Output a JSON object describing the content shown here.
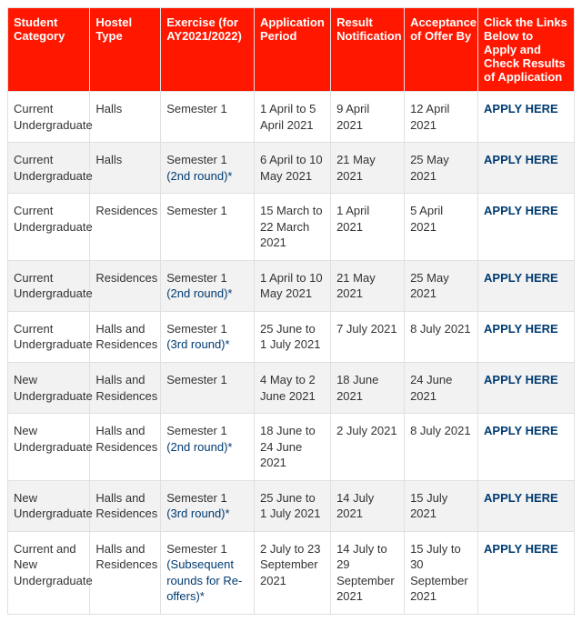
{
  "table": {
    "header_bg": "#ff1700",
    "header_color": "#ffffff",
    "row_alt_bg": "#f2f2f2",
    "border_color": "#e0e0e0",
    "link_color": "#003b71",
    "columns": [
      "Student Category",
      "Hostel Type",
      "Exercise (for AY2021/2022)",
      "Application Period",
      "Result Notification",
      "Acceptance of Offer By",
      "Click the Links Below to Apply and Check Results of Application"
    ],
    "rows": [
      {
        "category": "Current Undergraduate",
        "hostel": "Halls",
        "exercise_main": "Semester 1",
        "exercise_note": "",
        "app_period": "1 April to 5 April 2021",
        "result": "9 April 2021",
        "acceptance": "12 April 2021",
        "link_text": "APPLY HERE",
        "alt": false
      },
      {
        "category": "Current Undergraduate",
        "hostel": "Halls",
        "exercise_main": "Semester 1 ",
        "exercise_note": "(2nd round)*",
        "app_period": "6 April to 10 May 2021",
        "result": "21 May 2021",
        "acceptance": "25 May 2021",
        "link_text": " APPLY HERE",
        "alt": true
      },
      {
        "category": "Current Undergraduate",
        "hostel": "Residences",
        "exercise_main": "Semester 1",
        "exercise_note": "",
        "app_period": "15 March to 22 March 2021",
        "result": "1 April 2021",
        "acceptance": "5 April 2021",
        "link_text": "APPLY HERE",
        "alt": false
      },
      {
        "category": "Current Undergraduate",
        "hostel": "Residences",
        "exercise_main": "Semester 1 ",
        "exercise_note": "(2nd round)*",
        "app_period": "1 April to 10 May 2021",
        "result": "21 May 2021",
        "acceptance": "25 May 2021",
        "link_text": "APPLY HERE",
        "alt": true
      },
      {
        "category": "Current Undergraduate",
        "hostel": "Halls and Residences",
        "exercise_main": "Semester 1 ",
        "exercise_note": "(3rd round)*",
        "app_period": "25 June to 1 July 2021",
        "result": "7 July 2021",
        "acceptance": "8 July 2021",
        "link_text": " APPLY HERE",
        "alt": false
      },
      {
        "category": "New Undergraduate",
        "hostel": "Halls and Residences",
        "exercise_main": "Semester 1",
        "exercise_note": "",
        "app_period": "4 May to 2 June 2021",
        "result": "18 June 2021",
        "acceptance": "24 June 2021",
        "link_text": "APPLY HERE",
        "alt": true
      },
      {
        "category": "New Undergraduate",
        "hostel": "Halls and Residences",
        "exercise_main": "Semester 1 ",
        "exercise_note": "(2nd round)*",
        "app_period": "18 June to 24 June 2021",
        "result": "2 July 2021",
        "acceptance": "8 July 2021",
        "link_text": "APPLY HERE",
        "alt": false
      },
      {
        "category": "New Undergraduate",
        "hostel": "Halls and Residences",
        "exercise_main": "Semester 1 ",
        "exercise_note": "(3rd round)*",
        "app_period": "25 June to 1 July 2021",
        "result": "14 July 2021",
        "acceptance": "15 July 2021",
        "link_text": "APPLY HERE",
        "alt": true
      },
      {
        "category": "Current and New Undergraduate",
        "hostel": "Halls and Residences",
        "exercise_main": "Semester 1 ",
        "exercise_note": "(Subsequent rounds for Re-offers)*",
        "app_period": "2 July to 23 September 2021",
        "result": "14 July to 29 September 2021",
        "acceptance": "15 July to 30 September 2021",
        "link_text": "APPLY HERE",
        "alt": false
      }
    ]
  }
}
